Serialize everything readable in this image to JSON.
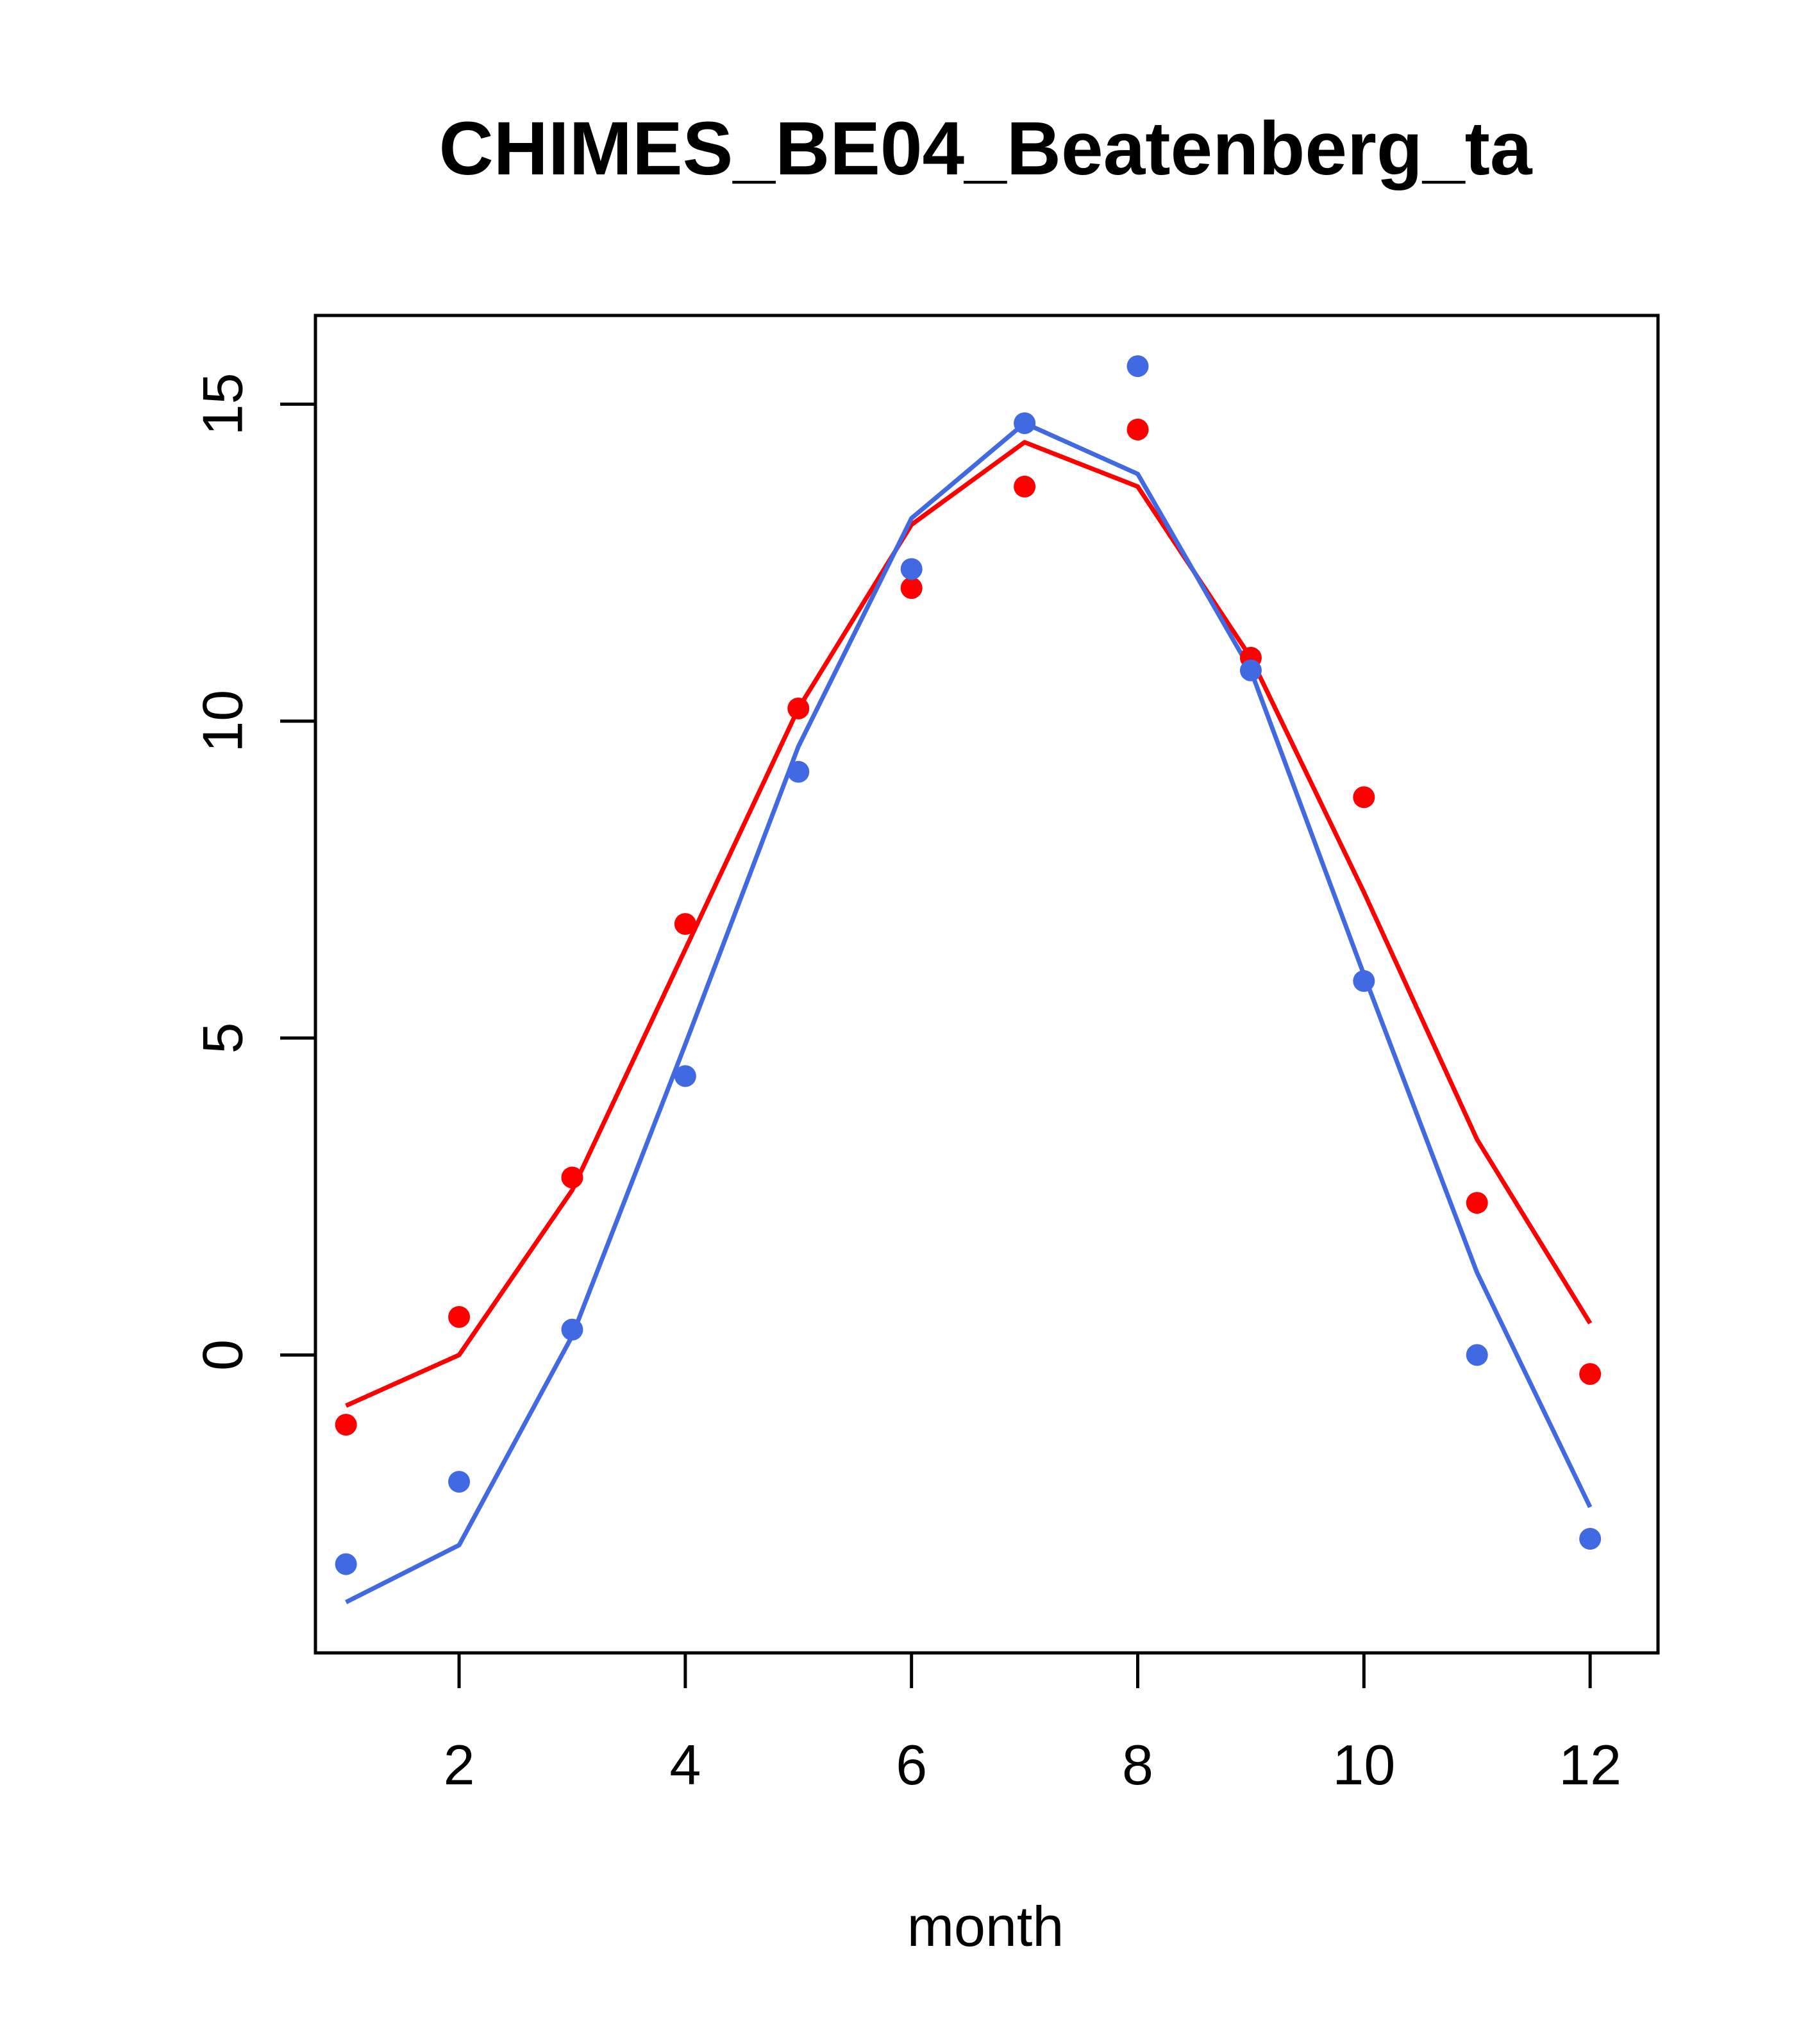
{
  "chart_data": {
    "type": "line",
    "title": "CHIMES_BE04_Beatenberg_ta",
    "xlabel": "month",
    "ylabel": "",
    "xlim": [
      0.73,
      12.6
    ],
    "ylim": [
      -4.7,
      16.4
    ],
    "x_ticks": [
      2,
      4,
      6,
      8,
      10,
      12
    ],
    "y_ticks": [
      0,
      5,
      10,
      15
    ],
    "x_tick_labels": [
      "2",
      "4",
      "6",
      "8",
      "10",
      "12"
    ],
    "y_tick_labels": [
      "0",
      "5",
      "10",
      "15"
    ],
    "grid": false,
    "legend": "none",
    "x": [
      1,
      2,
      3,
      4,
      5,
      6,
      7,
      8,
      9,
      10,
      11,
      12
    ],
    "series": [
      {
        "color": "#ff0000",
        "line": [
          -0.8,
          0.0,
          2.6,
          6.4,
          10.2,
          13.1,
          14.4,
          13.7,
          11.0,
          7.3,
          3.4,
          0.5
        ],
        "points": [
          -1.1,
          0.6,
          2.8,
          6.8,
          10.2,
          12.1,
          13.7,
          14.6,
          11.0,
          8.8,
          2.4,
          -0.3
        ]
      },
      {
        "color": "#4169e1",
        "line": [
          -3.9,
          -3.0,
          0.3,
          4.9,
          9.6,
          13.2,
          14.7,
          13.9,
          10.8,
          6.0,
          1.3,
          -2.4
        ],
        "points": [
          -3.3,
          -2.0,
          0.4,
          4.4,
          9.2,
          12.4,
          14.7,
          15.6,
          10.8,
          5.9,
          0.0,
          -2.9
        ]
      }
    ]
  }
}
